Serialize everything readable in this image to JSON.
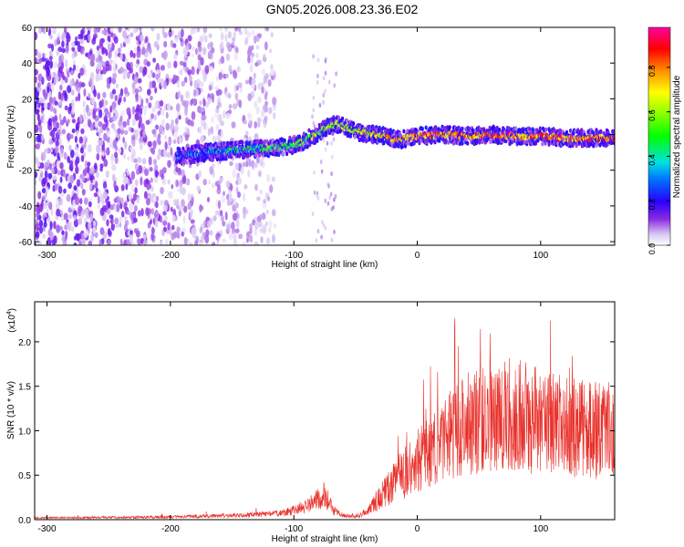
{
  "page": {
    "title": "GN05.2026.008.23.36.E02"
  },
  "chart_data": [
    {
      "type": "heatmap",
      "title": "GN05.2026.008.23.36.E02",
      "xlabel": "Height of straight line (km)",
      "ylabel": "Frequency (Hz)",
      "xlim": [
        -310,
        160
      ],
      "ylim": [
        -62,
        60
      ],
      "x_ticks": [
        -300,
        -200,
        -100,
        0,
        100
      ],
      "y_ticks": [
        60,
        40,
        20,
        0,
        -20,
        -40,
        -60
      ],
      "colorbar": {
        "label": "Normalized spectral amplitude",
        "range": [
          0.0,
          0.98
        ],
        "ticks": [
          "0.0",
          "0.2",
          "0.4",
          "0.6",
          "0.8"
        ],
        "colormap": "rainbow"
      },
      "ridge": {
        "description_points_x": [
          -190,
          -170,
          -150,
          -130,
          -110,
          -95,
          -85,
          -75,
          -65,
          -55,
          -45,
          -35,
          -25,
          -15,
          0,
          20,
          40,
          60,
          80,
          100,
          120,
          140,
          160
        ],
        "description_points_y": [
          -12,
          -10,
          -9,
          -8,
          -7,
          -5,
          -1,
          3,
          6,
          3,
          1,
          0,
          -1,
          -3,
          -1,
          0,
          -1,
          0,
          -1,
          -1,
          -2,
          -2,
          -2
        ]
      },
      "noise_region": {
        "x_from": -310,
        "x_to": -115
      },
      "grid": false
    },
    {
      "type": "line",
      "xlabel": "Height of straight line (km)",
      "ylabel": "SNR (10 * v/v)",
      "ylabel_scale": "(x10",
      "ylabel_scale_exp": "4",
      "ylabel_scale_close": ")",
      "xlim": [
        -310,
        160
      ],
      "ylim": [
        0,
        2.45
      ],
      "x_ticks": [
        -300,
        -200,
        -100,
        0,
        100
      ],
      "y_ticks": [
        "0.0",
        "0.5",
        "1.0",
        "1.5",
        "2.0"
      ],
      "series": [
        {
          "color": "#e8302a",
          "envelope_x": [
            -310,
            -200,
            -140,
            -110,
            -90,
            -75,
            -68,
            -60,
            -50,
            -40,
            -20,
            0,
            20,
            40,
            60,
            80,
            100,
            120,
            140,
            160
          ],
          "envelope_y": [
            0.02,
            0.03,
            0.05,
            0.07,
            0.15,
            0.28,
            0.1,
            0.05,
            0.03,
            0.1,
            0.4,
            0.65,
            0.85,
            1.1,
            1.15,
            1.2,
            1.1,
            1.05,
            1.0,
            1.0
          ]
        }
      ],
      "grid": false
    }
  ]
}
